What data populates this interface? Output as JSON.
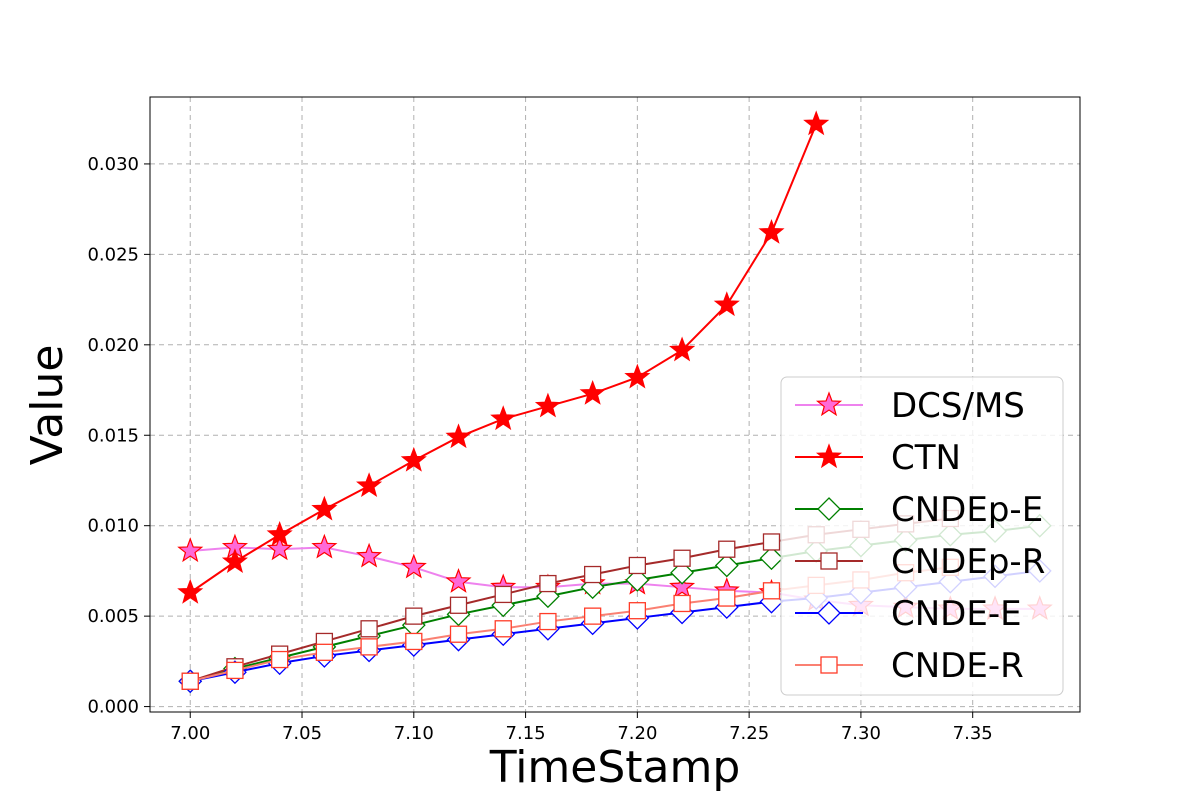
{
  "chart_data": {
    "type": "line",
    "title": "",
    "xlabel": "TimeStamp",
    "ylabel": "Value",
    "xlim": [
      6.982,
      7.398
    ],
    "ylim": [
      -0.0003,
      0.0337
    ],
    "xticks": [
      "7.00",
      "7.05",
      "7.10",
      "7.15",
      "7.20",
      "7.25",
      "7.30",
      "7.35"
    ],
    "yticks": [
      "0.000",
      "0.005",
      "0.010",
      "0.015",
      "0.020",
      "0.025",
      "0.030"
    ],
    "grid": true,
    "legend_position": "lower right",
    "series": [
      {
        "name": "DCS/MS",
        "line_color": "#ee82ee",
        "marker": "star",
        "marker_fill": "#ff69d8",
        "marker_edge": "#ff0000",
        "x": [
          7.0,
          7.02,
          7.04,
          7.06,
          7.08,
          7.1,
          7.12,
          7.14,
          7.16,
          7.18,
          7.2,
          7.22,
          7.24,
          7.26,
          7.28,
          7.3,
          7.32,
          7.34,
          7.36,
          7.38
        ],
        "y": [
          0.0086,
          0.0088,
          0.0087,
          0.0088,
          0.0083,
          0.0077,
          0.0069,
          0.0066,
          0.0066,
          0.0068,
          0.0068,
          0.0066,
          0.0064,
          0.0063,
          0.0059,
          0.0056,
          0.0055,
          0.0054,
          0.0054,
          0.0054
        ]
      },
      {
        "name": "CTN",
        "line_color": "#ff0000",
        "marker": "star",
        "marker_fill": "#ff0000",
        "marker_edge": "#ff0000",
        "x": [
          7.0,
          7.02,
          7.04,
          7.06,
          7.08,
          7.1,
          7.12,
          7.14,
          7.16,
          7.18,
          7.2,
          7.22,
          7.24,
          7.26,
          7.28
        ],
        "y": [
          0.0063,
          0.008,
          0.0095,
          0.0109,
          0.0122,
          0.0136,
          0.0149,
          0.0159,
          0.0166,
          0.0173,
          0.0182,
          0.0197,
          0.0222,
          0.0262,
          0.0322
        ]
      },
      {
        "name": "CNDEp-E",
        "line_color": "#008000",
        "marker": "diamond",
        "marker_fill": "#ffffff",
        "marker_edge": "#008000",
        "x": [
          7.0,
          7.02,
          7.04,
          7.06,
          7.08,
          7.1,
          7.12,
          7.14,
          7.16,
          7.18,
          7.2,
          7.22,
          7.24,
          7.26,
          7.28,
          7.3,
          7.32,
          7.34,
          7.36,
          7.38
        ],
        "y": [
          0.0014,
          0.0021,
          0.0027,
          0.0033,
          0.0039,
          0.0045,
          0.0051,
          0.0056,
          0.0061,
          0.0066,
          0.007,
          0.0074,
          0.0078,
          0.0082,
          0.0086,
          0.0089,
          0.0092,
          0.0095,
          0.0097,
          0.01
        ]
      },
      {
        "name": "CNDEp-R",
        "line_color": "#a52a2a",
        "marker": "square",
        "marker_fill": "#ffffff",
        "marker_edge": "#a52a2a",
        "x": [
          7.0,
          7.02,
          7.04,
          7.06,
          7.08,
          7.1,
          7.12,
          7.14,
          7.16,
          7.18,
          7.2,
          7.22,
          7.24,
          7.26,
          7.28,
          7.3,
          7.32,
          7.34
        ],
        "y": [
          0.0014,
          0.0022,
          0.0029,
          0.0036,
          0.0043,
          0.005,
          0.0056,
          0.0062,
          0.0068,
          0.0073,
          0.0078,
          0.0082,
          0.0087,
          0.0091,
          0.0095,
          0.0098,
          0.0101,
          0.0104
        ]
      },
      {
        "name": "CNDE-E",
        "line_color": "#0000ff",
        "marker": "diamond",
        "marker_fill": "#ffffff",
        "marker_edge": "#0000ff",
        "x": [
          7.0,
          7.02,
          7.04,
          7.06,
          7.08,
          7.1,
          7.12,
          7.14,
          7.16,
          7.18,
          7.2,
          7.22,
          7.24,
          7.26,
          7.28,
          7.3,
          7.32,
          7.34,
          7.36,
          7.38
        ],
        "y": [
          0.0014,
          0.0019,
          0.0024,
          0.0028,
          0.0031,
          0.0034,
          0.0037,
          0.004,
          0.0043,
          0.0046,
          0.0049,
          0.0052,
          0.0055,
          0.0058,
          0.006,
          0.0063,
          0.0066,
          0.0069,
          0.0072,
          0.0075
        ]
      },
      {
        "name": "CNDE-R",
        "line_color": "#fa8072",
        "marker": "square",
        "marker_fill": "#ffffff",
        "marker_edge": "#ff3c28",
        "x": [
          7.0,
          7.02,
          7.04,
          7.06,
          7.08,
          7.1,
          7.12,
          7.14,
          7.16,
          7.18,
          7.2,
          7.22,
          7.24,
          7.26,
          7.28,
          7.3,
          7.32,
          7.34
        ],
        "y": [
          0.0014,
          0.002,
          0.0026,
          0.003,
          0.0033,
          0.0036,
          0.004,
          0.0043,
          0.0047,
          0.005,
          0.0053,
          0.0057,
          0.006,
          0.0064,
          0.0067,
          0.007,
          0.0074,
          0.0077
        ]
      }
    ]
  }
}
